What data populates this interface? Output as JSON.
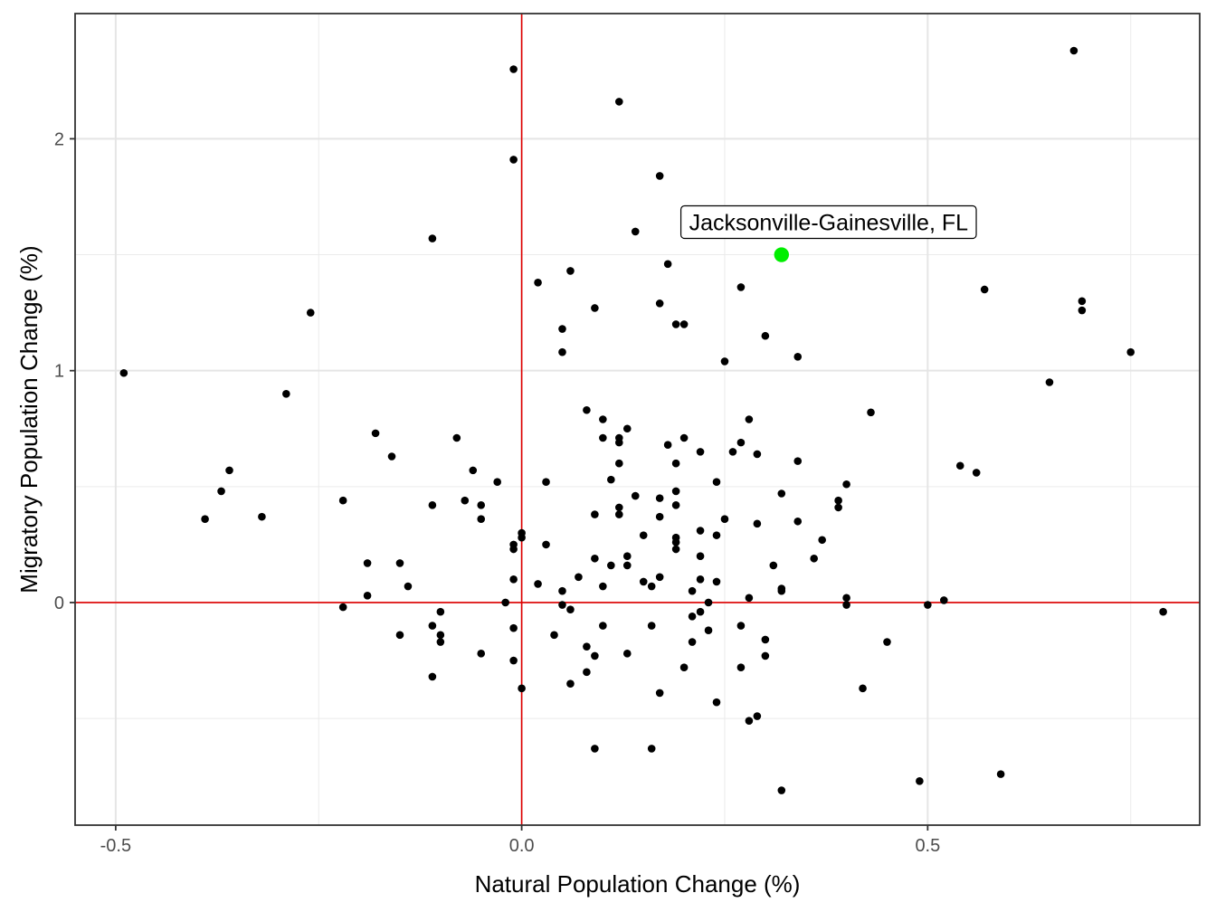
{
  "chart_data": {
    "type": "scatter",
    "title": "",
    "xlabel": "Natural Population Change (%)",
    "ylabel": "Migratory Population Change (%)",
    "xlim": [
      -0.55,
      0.835
    ],
    "ylim": [
      -0.96,
      2.54
    ],
    "x_ticks": [
      {
        "value": -0.5,
        "label": "-0.5"
      },
      {
        "value": 0.0,
        "label": "0.0"
      },
      {
        "value": 0.5,
        "label": "0.5"
      }
    ],
    "y_ticks": [
      {
        "value": 0,
        "label": "0"
      },
      {
        "value": 1,
        "label": "1"
      },
      {
        "value": 2,
        "label": "2"
      }
    ],
    "x_minor": [
      -0.25,
      0.25,
      0.75
    ],
    "y_minor": [
      -0.5,
      0.5,
      1.5
    ],
    "grid": true,
    "reference_lines": {
      "x": 0,
      "y": 0,
      "color": "#e00000"
    },
    "point_color": "#000000",
    "highlight": {
      "label": "Jacksonville-Gainesville, FL",
      "x": 0.32,
      "y": 1.5,
      "color": "#00ee00"
    },
    "points": [
      [
        -0.49,
        0.99
      ],
      [
        -0.26,
        1.25
      ],
      [
        -0.29,
        0.9
      ],
      [
        -0.39,
        0.36
      ],
      [
        -0.37,
        0.48
      ],
      [
        -0.36,
        0.57
      ],
      [
        -0.32,
        0.37
      ],
      [
        -0.22,
        0.44
      ],
      [
        -0.18,
        0.73
      ],
      [
        -0.16,
        0.63
      ],
      [
        -0.19,
        0.17
      ],
      [
        -0.19,
        0.03
      ],
      [
        -0.22,
        -0.02
      ],
      [
        -0.15,
        0.17
      ],
      [
        -0.14,
        0.07
      ],
      [
        -0.15,
        -0.14
      ],
      [
        -0.11,
        1.57
      ],
      [
        -0.11,
        0.42
      ],
      [
        -0.08,
        0.71
      ],
      [
        -0.07,
        0.44
      ],
      [
        -0.06,
        0.57
      ],
      [
        -0.05,
        0.42
      ],
      [
        -0.05,
        0.36
      ],
      [
        -0.03,
        0.52
      ],
      [
        -0.1,
        -0.04
      ],
      [
        -0.11,
        -0.1
      ],
      [
        -0.1,
        -0.14
      ],
      [
        -0.1,
        -0.17
      ],
      [
        -0.11,
        -0.32
      ],
      [
        -0.05,
        -0.22
      ],
      [
        -0.02,
        0.0
      ],
      [
        -0.01,
        2.3
      ],
      [
        -0.01,
        1.91
      ],
      [
        -0.01,
        0.25
      ],
      [
        -0.01,
        0.23
      ],
      [
        0.0,
        0.3
      ],
      [
        0.0,
        0.28
      ],
      [
        -0.01,
        0.1
      ],
      [
        -0.01,
        -0.11
      ],
      [
        -0.01,
        -0.25
      ],
      [
        0.0,
        -0.37
      ],
      [
        0.02,
        1.38
      ],
      [
        0.06,
        1.43
      ],
      [
        0.05,
        1.18
      ],
      [
        0.05,
        1.08
      ],
      [
        0.09,
        1.27
      ],
      [
        0.03,
        0.52
      ],
      [
        0.03,
        0.25
      ],
      [
        0.02,
        0.08
      ],
      [
        0.05,
        0.05
      ],
      [
        0.05,
        -0.01
      ],
      [
        0.06,
        -0.03
      ],
      [
        0.04,
        -0.14
      ],
      [
        0.08,
        -0.19
      ],
      [
        0.09,
        -0.23
      ],
      [
        0.08,
        -0.3
      ],
      [
        0.06,
        -0.35
      ],
      [
        0.09,
        -0.63
      ],
      [
        0.07,
        0.11
      ],
      [
        0.09,
        0.19
      ],
      [
        0.1,
        0.07
      ],
      [
        0.1,
        -0.1
      ],
      [
        0.11,
        0.16
      ],
      [
        0.09,
        0.38
      ],
      [
        0.11,
        0.53
      ],
      [
        0.12,
        0.6
      ],
      [
        0.1,
        0.71
      ],
      [
        0.12,
        0.71
      ],
      [
        0.12,
        0.69
      ],
      [
        0.13,
        0.75
      ],
      [
        0.08,
        0.83
      ],
      [
        0.1,
        0.79
      ],
      [
        0.12,
        0.41
      ],
      [
        0.12,
        0.38
      ],
      [
        0.14,
        0.46
      ],
      [
        0.13,
        0.2
      ],
      [
        0.13,
        0.16
      ],
      [
        0.15,
        0.29
      ],
      [
        0.15,
        0.09
      ],
      [
        0.16,
        0.07
      ],
      [
        0.17,
        0.11
      ],
      [
        0.13,
        -0.22
      ],
      [
        0.16,
        -0.1
      ],
      [
        0.17,
        -0.39
      ],
      [
        0.16,
        -0.63
      ],
      [
        0.12,
        2.16
      ],
      [
        0.17,
        1.84
      ],
      [
        0.14,
        1.6
      ],
      [
        0.18,
        1.46
      ],
      [
        0.17,
        1.29
      ],
      [
        0.19,
        1.2
      ],
      [
        0.2,
        1.2
      ],
      [
        0.17,
        0.45
      ],
      [
        0.17,
        0.37
      ],
      [
        0.18,
        0.68
      ],
      [
        0.19,
        0.6
      ],
      [
        0.2,
        0.71
      ],
      [
        0.19,
        0.48
      ],
      [
        0.19,
        0.42
      ],
      [
        0.19,
        0.28
      ],
      [
        0.19,
        0.26
      ],
      [
        0.19,
        0.23
      ],
      [
        0.22,
        0.65
      ],
      [
        0.22,
        0.31
      ],
      [
        0.22,
        0.2
      ],
      [
        0.22,
        0.1
      ],
      [
        0.21,
        0.05
      ],
      [
        0.23,
        0.0
      ],
      [
        0.21,
        -0.06
      ],
      [
        0.22,
        -0.04
      ],
      [
        0.23,
        -0.12
      ],
      [
        0.21,
        -0.17
      ],
      [
        0.2,
        -0.28
      ],
      [
        0.24,
        -0.43
      ],
      [
        0.27,
        1.36
      ],
      [
        0.25,
        1.04
      ],
      [
        0.3,
        1.15
      ],
      [
        0.24,
        0.52
      ],
      [
        0.25,
        0.36
      ],
      [
        0.24,
        0.29
      ],
      [
        0.24,
        0.09
      ],
      [
        0.26,
        0.65
      ],
      [
        0.27,
        0.69
      ],
      [
        0.28,
        0.79
      ],
      [
        0.29,
        0.64
      ],
      [
        0.29,
        0.34
      ],
      [
        0.28,
        0.02
      ],
      [
        0.27,
        -0.1
      ],
      [
        0.3,
        -0.16
      ],
      [
        0.3,
        -0.23
      ],
      [
        0.27,
        -0.28
      ],
      [
        0.28,
        -0.51
      ],
      [
        0.29,
        -0.49
      ],
      [
        0.34,
        1.06
      ],
      [
        0.34,
        0.61
      ],
      [
        0.32,
        0.47
      ],
      [
        0.34,
        0.35
      ],
      [
        0.31,
        0.16
      ],
      [
        0.32,
        0.06
      ],
      [
        0.32,
        0.05
      ],
      [
        0.37,
        0.27
      ],
      [
        0.36,
        0.19
      ],
      [
        0.39,
        0.44
      ],
      [
        0.39,
        0.41
      ],
      [
        0.4,
        0.51
      ],
      [
        0.4,
        0.02
      ],
      [
        0.4,
        -0.01
      ],
      [
        0.43,
        0.82
      ],
      [
        0.45,
        -0.17
      ],
      [
        0.42,
        -0.37
      ],
      [
        0.32,
        -0.81
      ],
      [
        0.5,
        -0.01
      ],
      [
        0.52,
        0.01
      ],
      [
        0.49,
        -0.77
      ],
      [
        0.54,
        0.59
      ],
      [
        0.56,
        0.56
      ],
      [
        0.57,
        1.35
      ],
      [
        0.59,
        -0.74
      ],
      [
        0.65,
        0.95
      ],
      [
        0.68,
        2.38
      ],
      [
        0.69,
        1.3
      ],
      [
        0.69,
        1.26
      ],
      [
        0.75,
        1.08
      ],
      [
        0.79,
        -0.04
      ]
    ]
  }
}
